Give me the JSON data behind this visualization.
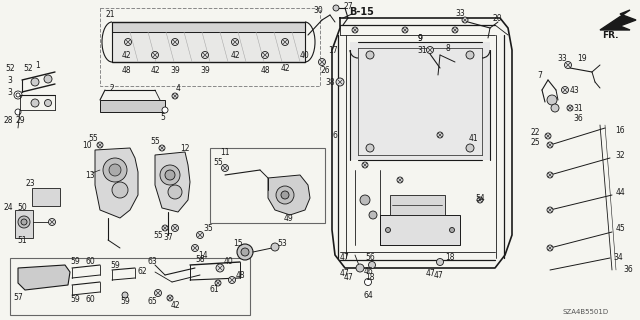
{
  "bg_color": "#f5f5f0",
  "diagram_code": "SZA4B5501D",
  "line_color": "#1a1a1a",
  "gray": "#666666",
  "label_fs": 5.5,
  "bold_fs": 7.0,
  "fig_w": 6.4,
  "fig_h": 3.2,
  "dpi": 100
}
